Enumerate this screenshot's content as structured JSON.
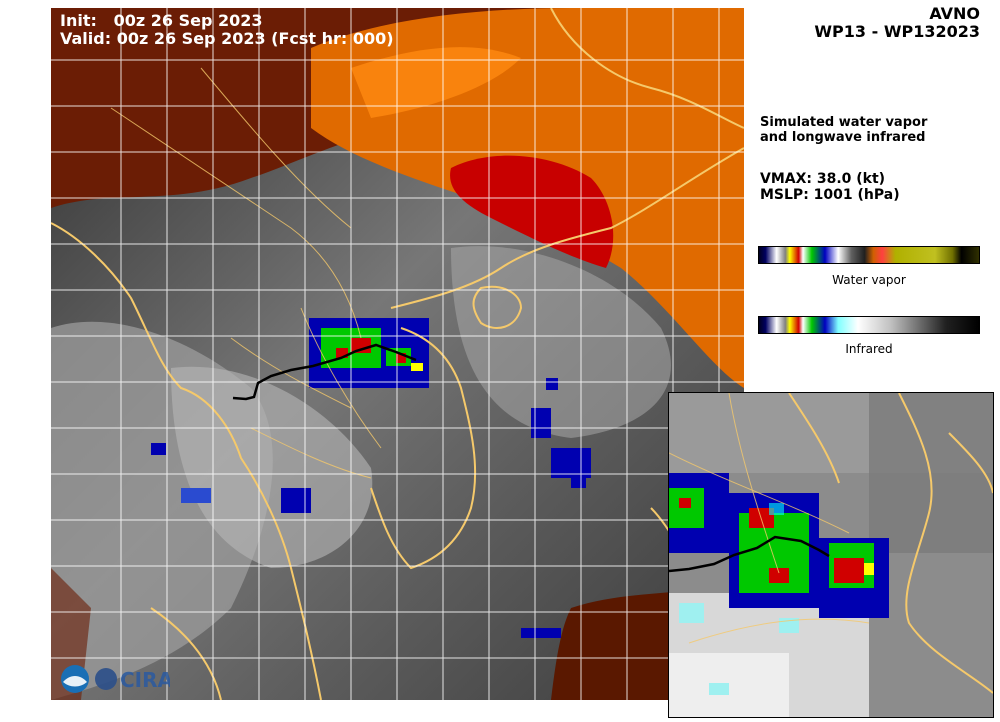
{
  "header": {
    "init_line": "Init:   00z 26 Sep 2023",
    "valid_line": "Valid: 00z 26 Sep 2023 (Fcst hr: 000)"
  },
  "model": {
    "name": "AVNO",
    "storm_id": "WP13 - WP132023"
  },
  "panel": {
    "description_line1": "Simulated water vapor",
    "description_line2": "and longwave infrared",
    "vmax": "VMAX:  38.0 (kt)",
    "mslp": "MSLP: 1001 (hPa)"
  },
  "colorbars": {
    "water_vapor_label": "Water vapor",
    "infrared_label": "Infrared"
  },
  "colors": {
    "coastline": "#f5c96b",
    "grid": "#ffffff",
    "track": "#000000",
    "wv_dry_dark": "#5a1800",
    "wv_dry_orange": "#e26a00",
    "wv_dry_red": "#c80000",
    "ir_blue": "#0000b0",
    "ir_green": "#00c800",
    "ir_red": "#d00000"
  },
  "logo": {
    "org_text": "CIRA"
  }
}
